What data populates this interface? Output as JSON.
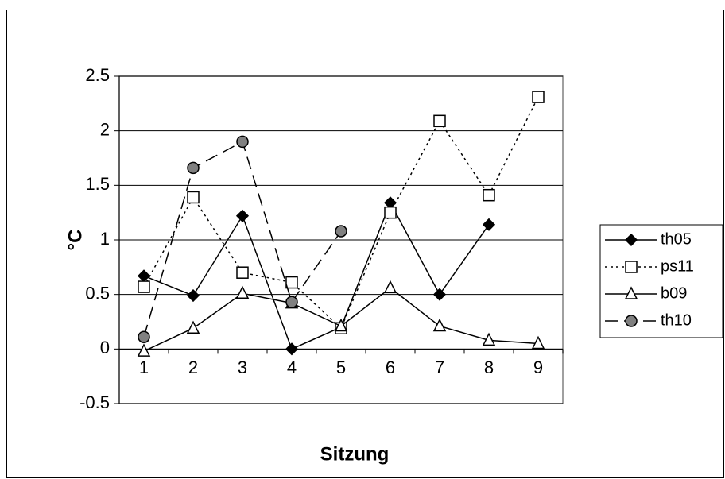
{
  "chart_data": {
    "type": "line",
    "x_label": "Sitzung",
    "y_label": "°C",
    "categories": [
      "1",
      "2",
      "3",
      "4",
      "5",
      "6",
      "7",
      "8",
      "9"
    ],
    "series": [
      {
        "name": "th05",
        "color": "#000000",
        "marker": "diamond",
        "marker_fill": "#000000",
        "dash": "solid",
        "values": [
          0.67,
          0.49,
          1.22,
          0.0,
          0.2,
          1.34,
          0.5,
          1.14,
          null
        ]
      },
      {
        "name": "ps11",
        "color": "#000000",
        "marker": "square",
        "marker_fill": "#ffffff",
        "dash": "dotted",
        "values": [
          0.57,
          1.39,
          0.7,
          0.61,
          0.19,
          1.25,
          2.09,
          1.41,
          2.31
        ]
      },
      {
        "name": "b09",
        "color": "#000000",
        "marker": "triangle",
        "marker_fill": "#ffffff",
        "dash": "solid",
        "values": [
          -0.02,
          0.19,
          0.51,
          0.42,
          0.21,
          0.56,
          0.21,
          0.08,
          0.05
        ]
      },
      {
        "name": "th10",
        "color": "#000000",
        "marker": "circle",
        "marker_fill": "#808080",
        "dash": "dashed",
        "values": [
          0.11,
          1.66,
          1.9,
          0.43,
          1.08,
          null,
          null,
          null,
          null
        ]
      }
    ],
    "ylim": [
      -0.5,
      2.5
    ],
    "yticks": [
      -0.5,
      0,
      0.5,
      1,
      1.5,
      2,
      2.5
    ],
    "grid": true,
    "legend": "right"
  }
}
